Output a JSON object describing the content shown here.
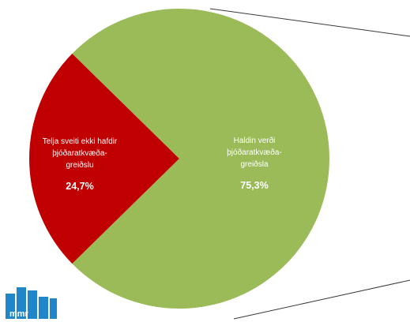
{
  "chart_data": {
    "type": "pie",
    "slices": [
      {
        "label_lines": [
          "Telja sveiti ekki hafdir",
          "þjóðaratkvæða-",
          "greiðslu"
        ],
        "value": 24.7,
        "value_label": "24,7%",
        "color": "#c00000"
      },
      {
        "label_lines": [
          "Haldin verði",
          "þjóðaratkvæða-",
          "greiðsla"
        ],
        "value": 75.3,
        "value_label": "75,3%",
        "color": "#9bbb59"
      }
    ]
  },
  "logo": {
    "text": "mmr",
    "color": "#1f87c9"
  }
}
